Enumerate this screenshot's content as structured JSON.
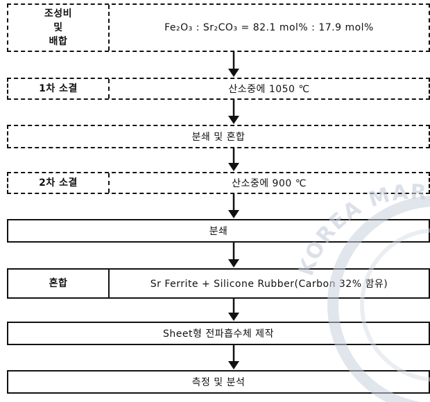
{
  "steps": [
    {
      "left": "조성비\n및\n배합",
      "right": "Fe₂O₃ : Sr₂CO₃ = 82.1 mol% : 17.9 mol%"
    },
    {
      "left": "1차 소결",
      "right": "산소중에 1050 ℃"
    },
    {
      "label": "분쇄 및 혼합"
    },
    {
      "left": "2차 소결",
      "right": "산소중에 900 ℃"
    },
    {
      "label": "분쇄"
    },
    {
      "left": "혼합",
      "right": "Sr Ferrite + Silicone Rubber(Carbon 32% 함유)"
    },
    {
      "label": "Sheet형 전파흡수체 제작"
    },
    {
      "label": "측정 및 분석"
    }
  ],
  "watermark_text": "KOREA MARITIME"
}
